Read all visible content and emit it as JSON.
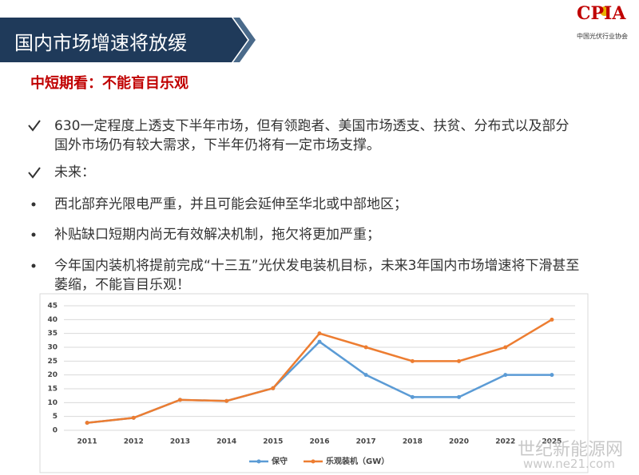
{
  "header": {
    "title": "国内市场增速将放缓"
  },
  "logo": {
    "name": "CPIA",
    "subtitle": "中国光伏行业协会"
  },
  "subtitle": "中短期看：不能盲目乐观",
  "bullets": [
    "630一定程度上透支下半年市场，但有领跑者、美国市场透支、扶贫、分布式以及部分国外市场仍有较大需求，下半年仍将有一定市场支撑。",
    "未来：",
    "西北部弃光限电严重，并且可能会延伸至华北或中部地区；",
    "补贴缺口短期内尚无有效解决机制，拖欠将更加严重；",
    "今年国内装机将提前完成“十三五”光伏发电装机目标，未来3年国内市场增速将下滑甚至萎缩，不能盲目乐观！"
  ],
  "chart_data": {
    "type": "line",
    "categories": [
      "2011",
      "2012",
      "2013",
      "2014",
      "2015",
      "2016",
      "2017",
      "2018",
      "2020",
      "2022",
      "2025"
    ],
    "series": [
      {
        "name": "保守",
        "color": "#5b9bd5",
        "values": [
          2.7,
          4.5,
          11,
          10.6,
          15.2,
          32,
          20,
          12,
          12,
          20,
          20
        ]
      },
      {
        "name": "乐观装机（GW）",
        "color": "#ed7d31",
        "values": [
          2.7,
          4.5,
          11,
          10.6,
          15.2,
          35,
          30,
          25,
          25,
          30,
          40
        ]
      }
    ],
    "ylim": [
      0,
      45
    ],
    "yticks": [
      0,
      5,
      10,
      15,
      20,
      25,
      30,
      35,
      40,
      45
    ],
    "grid": true,
    "legend": "bottom"
  },
  "watermark": [
    "世纪新能源网",
    "www.ne21.com"
  ]
}
